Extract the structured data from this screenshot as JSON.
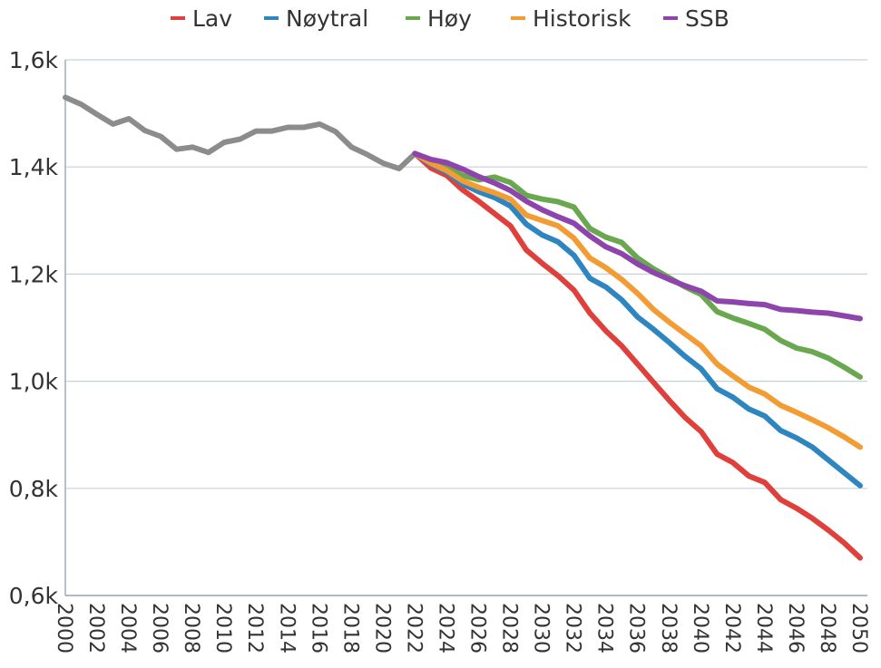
{
  "chart_data": {
    "type": "line",
    "title": "",
    "xlabel": "",
    "ylabel": "",
    "xlim": [
      2000,
      2050
    ],
    "ylim": [
      0.6,
      1.6
    ],
    "y_ticks": [
      0.6,
      0.8,
      1.0,
      1.2,
      1.4,
      1.6
    ],
    "y_tick_labels": [
      "0,6k",
      "0,8k",
      "1,0k",
      "1,2k",
      "1,4k",
      "1,6k"
    ],
    "x_ticks": [
      2000,
      2002,
      2004,
      2006,
      2008,
      2010,
      2012,
      2014,
      2016,
      2018,
      2020,
      2022,
      2024,
      2026,
      2028,
      2030,
      2032,
      2034,
      2036,
      2038,
      2040,
      2042,
      2044,
      2046,
      2048,
      2050
    ],
    "x_tick_labels": [
      "2000",
      "2002",
      "2004",
      "2006",
      "2008",
      "2010",
      "2012",
      "2014",
      "2016",
      "2018",
      "2020",
      "2022",
      "2024",
      "2026",
      "2028",
      "2030",
      "2032",
      "2034",
      "2036",
      "2038",
      "2040",
      "2042",
      "2044",
      "2046",
      "2048",
      "2050"
    ],
    "grid": "horizontal",
    "legend_position": "top",
    "history": {
      "color": "#8c8c8c",
      "x": [
        2000,
        2001,
        2002,
        2003,
        2004,
        2005,
        2006,
        2007,
        2008,
        2009,
        2010,
        2011,
        2012,
        2013,
        2014,
        2015,
        2016,
        2017,
        2018,
        2019,
        2020,
        2021,
        2022
      ],
      "values": [
        1.53,
        1.517,
        1.498,
        1.48,
        1.49,
        1.468,
        1.457,
        1.433,
        1.437,
        1.427,
        1.446,
        1.452,
        1.467,
        1.467,
        1.474,
        1.474,
        1.48,
        1.466,
        1.437,
        1.423,
        1.407,
        1.397,
        1.425
      ]
    },
    "series": [
      {
        "name": "Lav",
        "color": "#e0403c",
        "x": [
          2022,
          2023,
          2024,
          2025,
          2026,
          2027,
          2028,
          2029,
          2030,
          2031,
          2032,
          2033,
          2034,
          2035,
          2036,
          2037,
          2038,
          2039,
          2040,
          2041,
          2042,
          2043,
          2044,
          2045,
          2046,
          2047,
          2048,
          2049,
          2050
        ],
        "values": [
          1.425,
          1.398,
          1.384,
          1.357,
          1.336,
          1.313,
          1.29,
          1.245,
          1.22,
          1.197,
          1.17,
          1.127,
          1.094,
          1.066,
          1.032,
          0.998,
          0.964,
          0.932,
          0.906,
          0.864,
          0.848,
          0.823,
          0.811,
          0.779,
          0.763,
          0.744,
          0.722,
          0.698,
          0.67
        ]
      },
      {
        "name": "Nøytral",
        "color": "#2e86c1",
        "x": [
          2022,
          2023,
          2024,
          2025,
          2026,
          2027,
          2028,
          2029,
          2030,
          2031,
          2032,
          2033,
          2034,
          2035,
          2036,
          2037,
          2038,
          2039,
          2040,
          2041,
          2042,
          2043,
          2044,
          2045,
          2046,
          2047,
          2048,
          2049,
          2050
        ],
        "values": [
          1.425,
          1.405,
          1.39,
          1.368,
          1.354,
          1.343,
          1.327,
          1.293,
          1.273,
          1.26,
          1.235,
          1.192,
          1.176,
          1.152,
          1.12,
          1.097,
          1.072,
          1.046,
          1.023,
          0.986,
          0.97,
          0.948,
          0.935,
          0.908,
          0.894,
          0.877,
          0.853,
          0.829,
          0.805
        ]
      },
      {
        "name": "Høy",
        "color": "#6aa84f",
        "x": [
          2022,
          2023,
          2024,
          2025,
          2026,
          2027,
          2028,
          2029,
          2030,
          2031,
          2032,
          2033,
          2034,
          2035,
          2036,
          2037,
          2038,
          2039,
          2040,
          2041,
          2042,
          2043,
          2044,
          2045,
          2046,
          2047,
          2048,
          2049,
          2050
        ],
        "values": [
          1.425,
          1.41,
          1.4,
          1.384,
          1.376,
          1.381,
          1.371,
          1.347,
          1.34,
          1.335,
          1.325,
          1.285,
          1.269,
          1.259,
          1.23,
          1.21,
          1.193,
          1.176,
          1.162,
          1.13,
          1.118,
          1.108,
          1.097,
          1.076,
          1.062,
          1.055,
          1.043,
          1.026,
          1.008
        ]
      },
      {
        "name": "Historisk",
        "color": "#f39c34",
        "x": [
          2022,
          2023,
          2024,
          2025,
          2026,
          2027,
          2028,
          2029,
          2030,
          2031,
          2032,
          2033,
          2034,
          2035,
          2036,
          2037,
          2038,
          2039,
          2040,
          2041,
          2042,
          2043,
          2044,
          2045,
          2046,
          2047,
          2048,
          2049,
          2050
        ],
        "values": [
          1.425,
          1.407,
          1.393,
          1.374,
          1.362,
          1.352,
          1.34,
          1.31,
          1.3,
          1.29,
          1.267,
          1.23,
          1.212,
          1.19,
          1.164,
          1.134,
          1.11,
          1.088,
          1.066,
          1.032,
          1.01,
          0.989,
          0.976,
          0.955,
          0.942,
          0.928,
          0.913,
          0.896,
          0.877
        ]
      },
      {
        "name": "SSB",
        "color": "#8e44ad",
        "x": [
          2022,
          2023,
          2024,
          2025,
          2026,
          2027,
          2028,
          2029,
          2030,
          2031,
          2032,
          2033,
          2034,
          2035,
          2036,
          2037,
          2038,
          2039,
          2040,
          2041,
          2042,
          2043,
          2044,
          2045,
          2046,
          2047,
          2048,
          2049,
          2050
        ],
        "values": [
          1.425,
          1.414,
          1.408,
          1.396,
          1.382,
          1.37,
          1.356,
          1.336,
          1.32,
          1.307,
          1.295,
          1.271,
          1.251,
          1.238,
          1.219,
          1.203,
          1.19,
          1.178,
          1.168,
          1.15,
          1.148,
          1.145,
          1.143,
          1.134,
          1.132,
          1.129,
          1.127,
          1.122,
          1.117
        ]
      }
    ]
  }
}
